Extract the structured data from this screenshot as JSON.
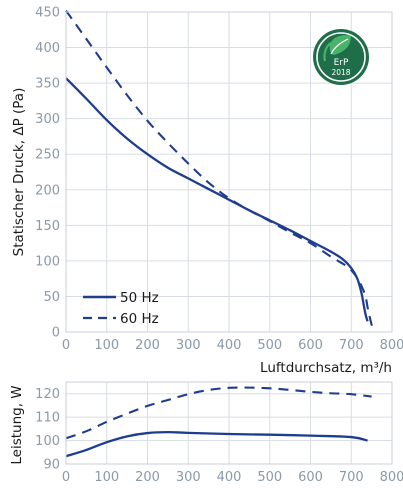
{
  "colors": {
    "line": "#1f3d8f",
    "grid": "#d7dde3",
    "tick_text": "#8a9aa8",
    "label_text": "#1a1a1a",
    "badge_green_dark": "#1f6e4a",
    "badge_green_light": "#49b36a"
  },
  "badge": {
    "icon": "erp-leaf-badge",
    "line1": "ErP",
    "line2": "2018"
  },
  "chart_data": [
    {
      "type": "line",
      "title": "",
      "xlabel": "Luftdurchsatz, m³/h",
      "ylabel": "Statischer Druck, ΔP (Pa)",
      "xlim": [
        0,
        800
      ],
      "ylim": [
        0,
        450
      ],
      "xticks": [
        0,
        100,
        200,
        300,
        400,
        500,
        600,
        700,
        800
      ],
      "yticks": [
        0,
        50,
        100,
        150,
        200,
        250,
        300,
        350,
        400,
        450
      ],
      "grid": true,
      "legend": "bottom-left",
      "series": [
        {
          "name": "50 Hz",
          "style": "solid",
          "x": [
            0,
            50,
            100,
            150,
            200,
            250,
            300,
            350,
            400,
            450,
            500,
            550,
            600,
            650,
            680,
            700,
            715,
            725,
            730,
            735,
            740
          ],
          "y": [
            357,
            328,
            298,
            272,
            250,
            231,
            216,
            201,
            186,
            171,
            157,
            143,
            128,
            113,
            102,
            90,
            75,
            55,
            40,
            25,
            15
          ]
        },
        {
          "name": "60 Hz",
          "style": "dashed",
          "x": [
            0,
            50,
            100,
            150,
            200,
            250,
            300,
            350,
            400,
            450,
            500,
            550,
            600,
            650,
            690,
            710,
            725,
            735,
            740,
            745,
            750,
            755
          ],
          "y": [
            452,
            412,
            372,
            333,
            297,
            266,
            237,
            210,
            188,
            171,
            156,
            140,
            125,
            106,
            92,
            80,
            65,
            50,
            35,
            22,
            10,
            0
          ]
        }
      ]
    },
    {
      "type": "line",
      "title": "",
      "xlabel": "",
      "ylabel": "Leistung, W",
      "xlim": [
        0,
        800
      ],
      "ylim": [
        90,
        125
      ],
      "xticks": [
        0,
        100,
        200,
        300,
        400,
        500,
        600,
        700,
        800
      ],
      "yticks": [
        90,
        100,
        110,
        120
      ],
      "grid": true,
      "series": [
        {
          "name": "50 Hz",
          "style": "solid",
          "x": [
            0,
            50,
            100,
            150,
            200,
            250,
            300,
            400,
            500,
            600,
            700,
            740
          ],
          "y": [
            93.3,
            96,
            99.3,
            101.8,
            103.2,
            103.6,
            103.3,
            102.8,
            102.5,
            102.1,
            101.5,
            100
          ]
        },
        {
          "name": "60 Hz",
          "style": "dashed",
          "x": [
            0,
            50,
            100,
            150,
            200,
            250,
            300,
            350,
            400,
            450,
            500,
            550,
            600,
            650,
            700,
            750
          ],
          "y": [
            101,
            104,
            108,
            111.5,
            114.8,
            117.3,
            119.8,
            121.6,
            122.5,
            122.6,
            122.3,
            121.6,
            120.8,
            120.2,
            119.8,
            118.8
          ]
        }
      ]
    }
  ]
}
